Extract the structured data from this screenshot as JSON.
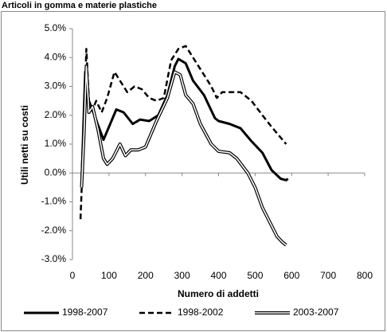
{
  "chart_data": {
    "type": "line",
    "title": "Articoli in gomma e materie plastiche",
    "x_label": "Numero di addetti",
    "y_label": "Utili netti su costi",
    "xlim": [
      0,
      800
    ],
    "xticks": [
      0,
      100,
      200,
      300,
      400,
      500,
      600,
      700,
      800
    ],
    "ylim": [
      -3,
      5
    ],
    "yticks": [
      {
        "value": 5,
        "label": "5.0%"
      },
      {
        "value": 4,
        "label": "4.0%"
      },
      {
        "value": 3,
        "label": "3.0%"
      },
      {
        "value": 2,
        "label": "2.0%"
      },
      {
        "value": 1,
        "label": "1.0%"
      },
      {
        "value": 0,
        "label": "0.0%"
      },
      {
        "value": -1,
        "label": "-1.0%"
      },
      {
        "value": -2,
        "label": "-2.0%"
      },
      {
        "value": -3,
        "label": "-3.0%"
      }
    ],
    "legend": "bottom",
    "series": [
      {
        "name": "1998-2007",
        "color": "#000000",
        "style": "solid",
        "x": [
          25,
          35,
          45,
          60,
          85,
          120,
          140,
          165,
          185,
          210,
          235,
          260,
          280,
          290,
          310,
          330,
          360,
          390,
          400,
          430,
          460,
          490,
          520,
          545,
          570,
          585,
          590
        ],
        "values": [
          -0.3,
          3.5,
          2.5,
          2.0,
          1.15,
          2.2,
          2.1,
          1.7,
          1.85,
          1.8,
          2.0,
          2.7,
          3.7,
          3.95,
          3.8,
          3.2,
          2.7,
          1.9,
          1.8,
          1.7,
          1.55,
          1.1,
          0.7,
          0.1,
          -0.2,
          -0.25,
          -0.2
        ]
      },
      {
        "name": "1998-2002",
        "color": "#000000",
        "style": "dashed",
        "x": [
          22,
          30,
          38,
          45,
          55,
          65,
          80,
          95,
          115,
          130,
          150,
          170,
          190,
          210,
          230,
          250,
          270,
          290,
          310,
          330,
          360,
          380,
          395,
          410,
          440,
          460,
          490,
          520,
          545,
          565,
          585
        ],
        "values": [
          -1.6,
          1.0,
          4.3,
          2.5,
          2.2,
          2.5,
          2.1,
          2.6,
          3.5,
          3.2,
          2.8,
          3.0,
          2.9,
          2.6,
          2.5,
          2.6,
          3.9,
          4.3,
          4.4,
          4.0,
          3.4,
          3.0,
          2.6,
          2.8,
          2.8,
          2.8,
          2.5,
          2.0,
          1.6,
          1.3,
          1.0
        ]
      },
      {
        "name": "2003-2007",
        "color": "#000000",
        "style": "double",
        "x": [
          25,
          32,
          38,
          45,
          55,
          70,
          85,
          95,
          110,
          130,
          145,
          160,
          180,
          200,
          230,
          260,
          280,
          295,
          310,
          330,
          350,
          380,
          400,
          430,
          450,
          480,
          500,
          520,
          540,
          560,
          575,
          585
        ],
        "values": [
          -0.5,
          1.5,
          3.7,
          2.1,
          2.3,
          1.5,
          0.5,
          0.3,
          0.5,
          1.0,
          0.6,
          0.8,
          0.8,
          0.9,
          1.8,
          2.6,
          3.5,
          3.4,
          2.7,
          2.4,
          1.7,
          1.0,
          0.75,
          0.7,
          0.5,
          0.0,
          -0.5,
          -1.2,
          -1.7,
          -2.2,
          -2.4,
          -2.5
        ]
      }
    ]
  }
}
